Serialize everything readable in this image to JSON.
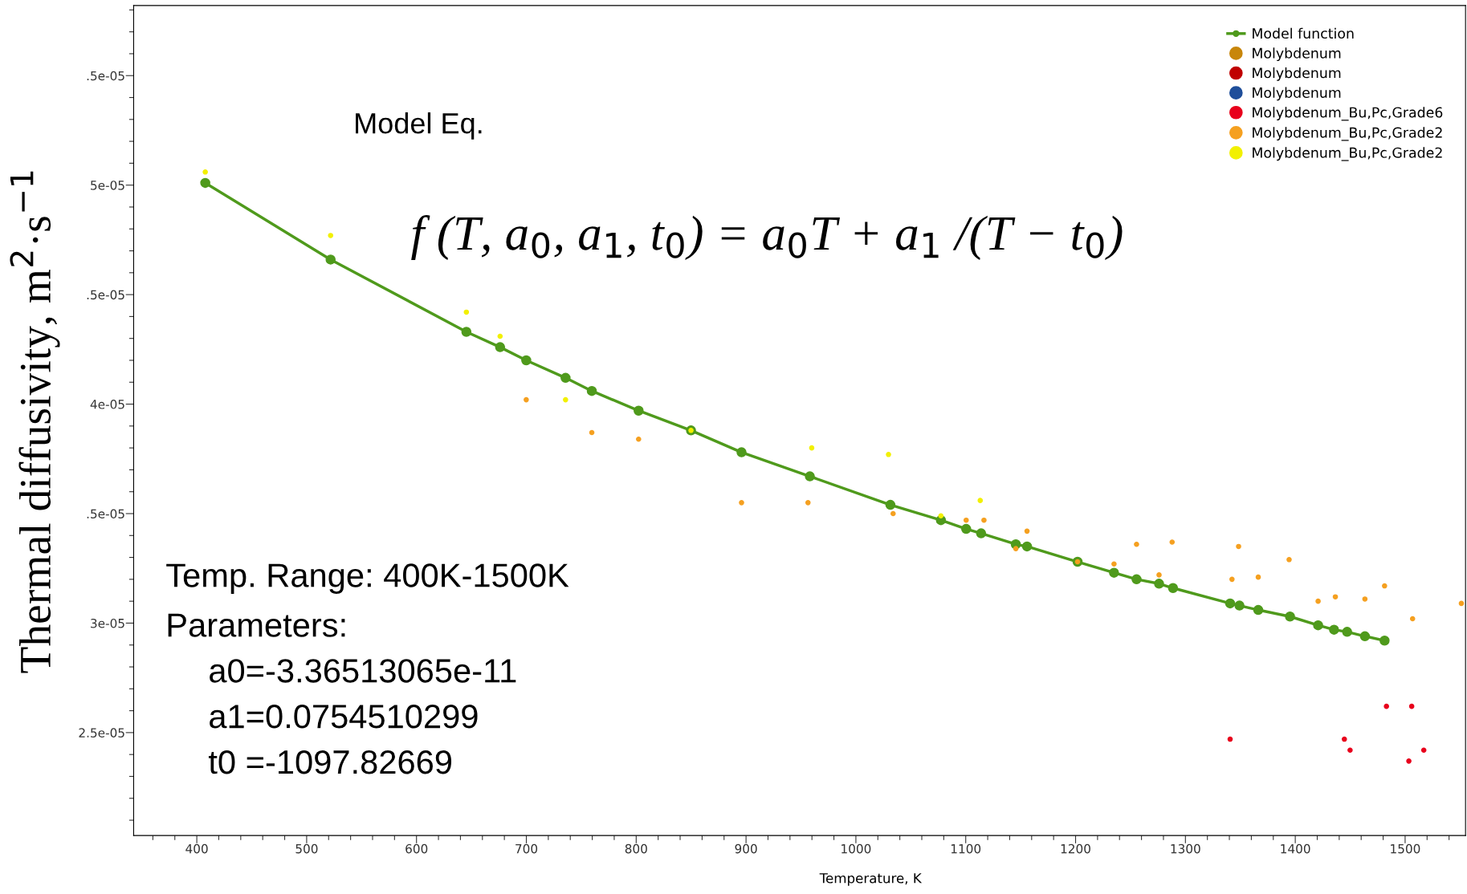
{
  "chart_data": {
    "type": "scatter",
    "xlabel": "Temperature, K",
    "ylabel": "Thermal diffusivity, m$^{2}$·s$^{−1}$",
    "xlim": [
      342.5,
      1555
    ],
    "ylim": [
      2.03e-05,
      5.82e-05
    ],
    "xticks": [
      {
        "value": 360,
        "label": null
      },
      {
        "value": 380,
        "label": null
      },
      400,
      {
        "value": 420,
        "label": null
      },
      {
        "value": 440,
        "label": null
      },
      {
        "value": 460,
        "label": null
      },
      {
        "value": 480,
        "label": null
      },
      500,
      {
        "value": 520,
        "label": null
      },
      {
        "value": 540,
        "label": null
      },
      {
        "value": 560,
        "label": null
      },
      {
        "value": 580,
        "label": null
      },
      600,
      {
        "value": 620,
        "label": null
      },
      {
        "value": 640,
        "label": null
      },
      {
        "value": 660,
        "label": null
      },
      {
        "value": 680,
        "label": null
      },
      700,
      {
        "value": 720,
        "label": null
      },
      {
        "value": 740,
        "label": null
      },
      {
        "value": 760,
        "label": null
      },
      {
        "value": 780,
        "label": null
      },
      800,
      {
        "value": 820,
        "label": null
      },
      {
        "value": 840,
        "label": null
      },
      {
        "value": 860,
        "label": null
      },
      {
        "value": 880,
        "label": null
      },
      900,
      {
        "value": 920,
        "label": null
      },
      {
        "value": 940,
        "label": null
      },
      {
        "value": 960,
        "label": null
      },
      {
        "value": 980,
        "label": null
      },
      1000,
      {
        "value": 1020,
        "label": null
      },
      {
        "value": 1040,
        "label": null
      },
      {
        "value": 1060,
        "label": null
      },
      {
        "value": 1080,
        "label": null
      },
      1100,
      {
        "value": 1120,
        "label": null
      },
      {
        "value": 1140,
        "label": null
      },
      {
        "value": 1160,
        "label": null
      },
      {
        "value": 1180,
        "label": null
      },
      1200,
      {
        "value": 1220,
        "label": null
      },
      {
        "value": 1240,
        "label": null
      },
      {
        "value": 1260,
        "label": null
      },
      {
        "value": 1280,
        "label": null
      },
      1300,
      {
        "value": 1320,
        "label": null
      },
      {
        "value": 1340,
        "label": null
      },
      {
        "value": 1360,
        "label": null
      },
      {
        "value": 1380,
        "label": null
      },
      1400,
      {
        "value": 1420,
        "label": null
      },
      {
        "value": 1440,
        "label": null
      },
      {
        "value": 1460,
        "label": null
      },
      {
        "value": 1480,
        "label": null
      },
      1500,
      {
        "value": 1520,
        "label": null
      },
      {
        "value": 1540,
        "label": null
      }
    ],
    "yticks": [
      {
        "value": 2.1e-05,
        "label": null
      },
      {
        "value": 2.2e-05,
        "label": null
      },
      {
        "value": 2.3e-05,
        "label": null
      },
      {
        "value": 2.4e-05,
        "label": null
      },
      {
        "value": 2.5e-05,
        "label": "2.5e-05"
      },
      {
        "value": 2.6e-05,
        "label": null
      },
      {
        "value": 2.7e-05,
        "label": null
      },
      {
        "value": 2.8e-05,
        "label": null
      },
      {
        "value": 2.9e-05,
        "label": null
      },
      {
        "value": 3e-05,
        "label": "3e-05"
      },
      {
        "value": 3.1e-05,
        "label": null
      },
      {
        "value": 3.2e-05,
        "label": null
      },
      {
        "value": 3.3e-05,
        "label": null
      },
      {
        "value": 3.4e-05,
        "label": null
      },
      {
        "value": 3.5e-05,
        "label": ".5e-05"
      },
      {
        "value": 3.6e-05,
        "label": null
      },
      {
        "value": 3.7e-05,
        "label": null
      },
      {
        "value": 3.8e-05,
        "label": null
      },
      {
        "value": 3.9e-05,
        "label": null
      },
      {
        "value": 4e-05,
        "label": "4e-05"
      },
      {
        "value": 4.1e-05,
        "label": null
      },
      {
        "value": 4.2e-05,
        "label": null
      },
      {
        "value": 4.3e-05,
        "label": null
      },
      {
        "value": 4.4e-05,
        "label": null
      },
      {
        "value": 4.5e-05,
        "label": ".5e-05"
      },
      {
        "value": 4.6e-05,
        "label": null
      },
      {
        "value": 4.7e-05,
        "label": null
      },
      {
        "value": 4.8e-05,
        "label": null
      },
      {
        "value": 4.9e-05,
        "label": null
      },
      {
        "value": 5e-05,
        "label": "5e-05"
      },
      {
        "value": 5.1e-05,
        "label": null
      },
      {
        "value": 5.2e-05,
        "label": null
      },
      {
        "value": 5.3e-05,
        "label": null
      },
      {
        "value": 5.4e-05,
        "label": null
      },
      {
        "value": 5.5e-05,
        "label": ".5e-05"
      },
      {
        "value": 5.6e-05,
        "label": null
      },
      {
        "value": 5.7e-05,
        "label": null
      },
      {
        "value": 5.8e-05,
        "label": null
      }
    ],
    "grid": false,
    "legend": "top right",
    "annotations": [
      "Model Eq.",
      "f (T, a$_{0}$, a$_{1}$, t$_{0}$) = a$_{0}$T + a$_{1}$ /(T − t$_{0}$)",
      "Temp. Range: 400K-1500K",
      "Parameters:",
      "a0=-3.36513065e-11",
      "a1=0.0754510299",
      "t0 =-1097.82669"
    ],
    "series": [
      {
        "name": "Model function",
        "type": "line",
        "marker": "circle",
        "line_style": "solid",
        "color": "#4f9a1c",
        "x": [
          407.7,
          521.8,
          645.4,
          676.1,
          699.9,
          735.7,
          759.6,
          802.2,
          849.9,
          895.9,
          958.1,
          1031.4,
          1077.4,
          1100.4,
          1114,
          1145.6,
          1155.8,
          1201.8,
          1235,
          1255.5,
          1276,
          1288.7,
          1340.7,
          1349.2,
          1366.3,
          1395.2,
          1420.8,
          1435.3,
          1447.2,
          1463.4,
          1481.3
        ],
        "values": [
          5.01e-05,
          4.66e-05,
          4.33e-05,
          4.26e-05,
          4.2e-05,
          4.12e-05,
          4.06e-05,
          3.97e-05,
          3.88e-05,
          3.78e-05,
          3.67e-05,
          3.54e-05,
          3.47e-05,
          3.43e-05,
          3.41e-05,
          3.36e-05,
          3.35e-05,
          3.28e-05,
          3.23e-05,
          3.2e-05,
          3.18e-05,
          3.16e-05,
          3.09e-05,
          3.08e-05,
          3.06e-05,
          3.03e-05,
          2.99e-05,
          2.97e-05,
          2.96e-05,
          2.94e-05,
          2.92e-05
        ]
      },
      {
        "name": "Molybdenum",
        "marker": "circle",
        "color": "#c8860a"
      },
      {
        "name": "Molybdenum",
        "marker": "circle",
        "color": "#c00000"
      },
      {
        "name": "Molybdenum",
        "marker": "circle",
        "color": "#1f4e9a"
      },
      {
        "name": "Molybdenum_Bu,Pc,Grade6",
        "marker": "circle",
        "color": "#e8001c",
        "x": [
          1340.7,
          1444.7,
          1449.9,
          1483,
          1506,
          1503.4,
          1517
        ],
        "values": [
          2.47e-05,
          2.47e-05,
          2.42e-05,
          2.62e-05,
          2.62e-05,
          2.37e-05,
          2.42e-05
        ]
      },
      {
        "name": "Molybdenum_Bu,Pc,Grade2",
        "marker": "circle",
        "color": "#f5a020",
        "x": [
          699.9,
          759.6,
          802.2,
          895.9,
          956.4,
          1033.9,
          1100.4,
          1116.6,
          1155.8,
          1145.6,
          1201.8,
          1235,
          1255.5,
          1276,
          1287.9,
          1342.4,
          1348.4,
          1366.3,
          1394.4,
          1420.8,
          1436.5,
          1463.4,
          1481.3,
          1506.8,
          1551.2
        ],
        "values": [
          4.02e-05,
          3.87e-05,
          3.84e-05,
          3.55e-05,
          3.55e-05,
          3.5e-05,
          3.47e-05,
          3.47e-05,
          3.42e-05,
          3.34e-05,
          3.28e-05,
          3.27e-05,
          3.36e-05,
          3.22e-05,
          3.37e-05,
          3.2e-05,
          3.35e-05,
          3.21e-05,
          3.29e-05,
          3.1e-05,
          3.12e-05,
          3.11e-05,
          3.17e-05,
          3.02e-05,
          3.09e-05
        ]
      },
      {
        "name": "Molybdenum_Bu,Pc,Grade2",
        "marker": "circle",
        "color": "#f2f000",
        "x": [
          407.7,
          521.8,
          645.4,
          676.1,
          735.7,
          849.9,
          959.8,
          1029.7,
          1077.4,
          1113.2
        ],
        "values": [
          5.06e-05,
          4.77e-05,
          4.42e-05,
          4.31e-05,
          4.02e-05,
          3.88e-05,
          3.8e-05,
          3.77e-05,
          3.49e-05,
          3.56e-05
        ]
      }
    ]
  }
}
